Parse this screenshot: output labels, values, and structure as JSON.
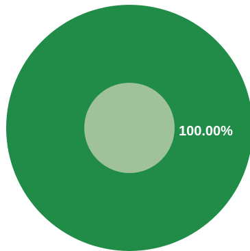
{
  "chart_data": {
    "type": "pie",
    "categories": [
      ""
    ],
    "values": [
      100.0
    ],
    "data_labels": [
      "100.00%"
    ],
    "colors": {
      "slice": "#218b48",
      "center": "#9fc29a"
    },
    "hole": "center-disc",
    "legend": "none",
    "title": ""
  }
}
